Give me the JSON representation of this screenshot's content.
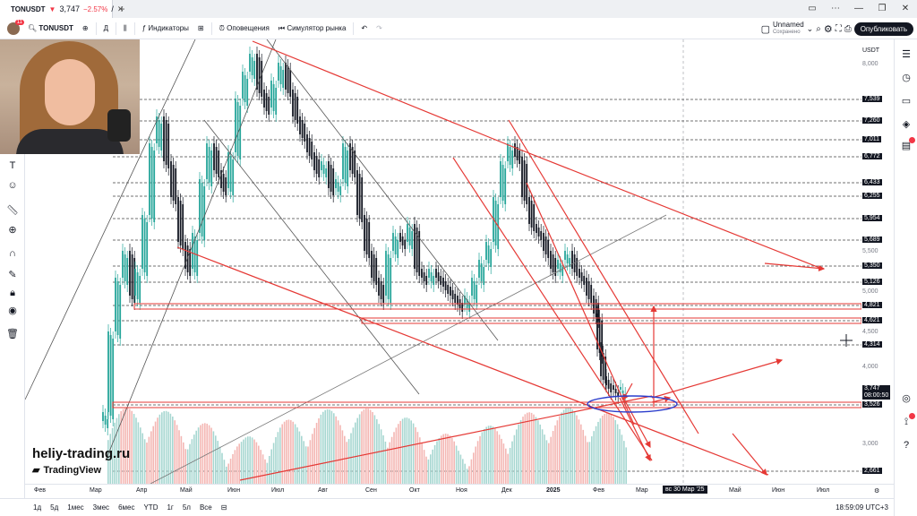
{
  "tab": {
    "symbol": "TONUSDT",
    "arrow": "▼",
    "price": "3,747",
    "change": "−2.57%",
    "slash": "/"
  },
  "toolbar": {
    "avatar_badge": "11",
    "symbol": "TONUSDT",
    "interval": "Д",
    "indicators": "Индикаторы",
    "alerts": "Оповещения",
    "replay": "Симулятор рынка",
    "layout_name": "Unnamed",
    "layout_status": "Сохранено",
    "publish": "Опубликовать"
  },
  "price_scale": {
    "currency": "USDT",
    "plain_labels": [
      "8,000",
      "5,500",
      "5,000",
      "4,500",
      "4,000",
      "3,000"
    ],
    "level_labels": [
      "7,539",
      "7,260",
      "7,011",
      "6,772",
      "6,433",
      "6,255",
      "5,954",
      "5,689",
      "5,350",
      "5,126",
      "4,821",
      "4,621",
      "4,314",
      "3,526",
      "2,661"
    ],
    "current_price": "3,747",
    "countdown": "08:00:50"
  },
  "time_scale": {
    "labels": [
      "Фев",
      "Мар",
      "Апр",
      "Май",
      "Июн",
      "Июл",
      "Авг",
      "Сен",
      "Окт",
      "Ноя",
      "Дек",
      "2025",
      "Фев",
      "Мар",
      "Май",
      "Июн",
      "Июл"
    ],
    "cursor": "вс 30 Мар '25"
  },
  "bottom": {
    "ranges": [
      "1д",
      "5д",
      "1мес",
      "3мес",
      "6мес",
      "YTD",
      "1г",
      "5л",
      "Все"
    ],
    "clock": "18:59:09 UTC+3"
  },
  "watermark": {
    "site": "heliy-trading.ru",
    "brand": "TradingView"
  },
  "colors": {
    "up": "#26a69a",
    "down": "#131722",
    "drawing": "#e53935",
    "accent": "#2962ff",
    "ellipse": "#2b3dcc"
  }
}
